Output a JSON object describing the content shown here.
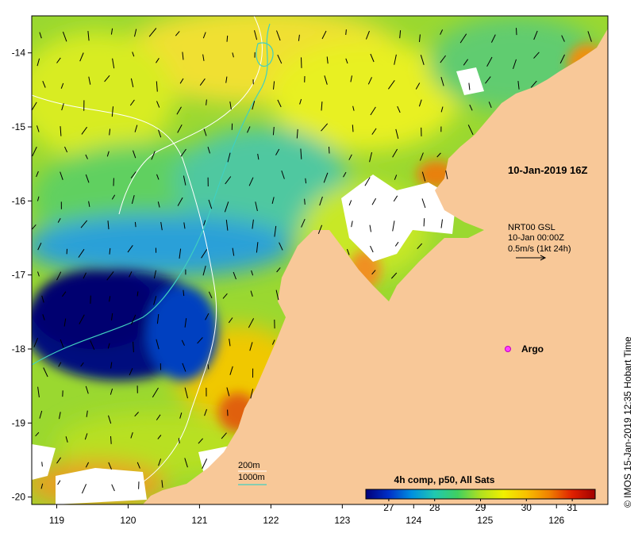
{
  "map": {
    "datetime": "10-Jan-2019 16Z",
    "current_source": {
      "line1": "NRT00 GSL",
      "line2": "10-Jan 00:00Z",
      "line3": "0.5m/s (1kt 24h)"
    },
    "marker_label": "Argo",
    "isobaths": {
      "line1": "200m",
      "line2": "1000m",
      "color_200": "#ffffff",
      "color_1000": "#40d0c0"
    },
    "colorbar": {
      "title": "4h comp, p50, All Sats",
      "tick_labels": [
        "27",
        "28",
        "29",
        "30",
        "31"
      ],
      "ticks": [
        27,
        28,
        29,
        30,
        31
      ],
      "range": [
        26.5,
        31.5
      ],
      "colors": [
        "#00007a",
        "#0030c8",
        "#0090e0",
        "#20c8b0",
        "#40d060",
        "#b0e020",
        "#f0f000",
        "#f8c000",
        "#f08000",
        "#e02000",
        "#a00000"
      ]
    },
    "x_axis": {
      "ticks": [
        119,
        120,
        121,
        122,
        123,
        124,
        125,
        126
      ],
      "labels": [
        "119",
        "120",
        "121",
        "122",
        "123",
        "124",
        "125",
        "126"
      ]
    },
    "y_axis": {
      "ticks": [
        -14,
        -15,
        -16,
        -17,
        -18,
        -19,
        -20
      ],
      "labels": [
        "-14",
        "-15",
        "-16",
        "-17",
        "-18",
        "-19",
        "-20"
      ]
    },
    "lon_range": [
      118.65,
      126.72
    ],
    "lat_range": [
      -20.1,
      -13.5
    ],
    "land_color": "#f8c898",
    "copyright": "© IMOS 15-Jan-2019 12:35 Hobart Time"
  }
}
